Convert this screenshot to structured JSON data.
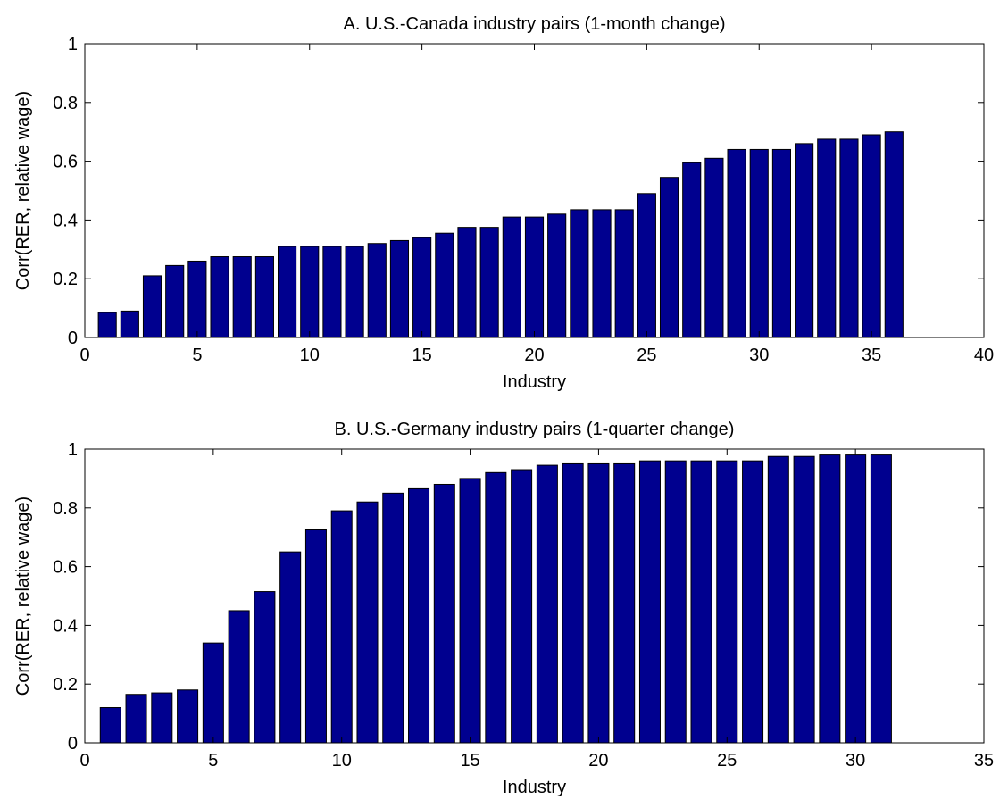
{
  "chart_data": [
    {
      "type": "bar",
      "title": "A. U.S.-Canada industry pairs (1-month change)",
      "xlabel": "Industry",
      "ylabel": "Corr(RER, relative wage)",
      "xlim": [
        0,
        40
      ],
      "ylim": [
        0,
        1
      ],
      "xticks": [
        0,
        5,
        10,
        15,
        20,
        25,
        30,
        35,
        40
      ],
      "yticks": [
        0,
        0.2,
        0.4,
        0.6,
        0.8,
        1
      ],
      "xtick_labels": [
        "0",
        "5",
        "10",
        "15",
        "20",
        "25",
        "30",
        "35",
        "40"
      ],
      "ytick_labels": [
        "0",
        "0.2",
        "0.4",
        "0.6",
        "0.8",
        "1"
      ],
      "categories": [
        1,
        2,
        3,
        4,
        5,
        6,
        7,
        8,
        9,
        10,
        11,
        12,
        13,
        14,
        15,
        16,
        17,
        18,
        19,
        20,
        21,
        22,
        23,
        24,
        25,
        26,
        27,
        28,
        29,
        30,
        31,
        32,
        33,
        34,
        35,
        36
      ],
      "values": [
        0.085,
        0.09,
        0.21,
        0.245,
        0.26,
        0.275,
        0.275,
        0.275,
        0.31,
        0.31,
        0.31,
        0.31,
        0.32,
        0.33,
        0.34,
        0.355,
        0.375,
        0.375,
        0.41,
        0.41,
        0.42,
        0.435,
        0.435,
        0.435,
        0.49,
        0.545,
        0.595,
        0.61,
        0.64,
        0.64,
        0.64,
        0.66,
        0.675,
        0.675,
        0.69,
        0.7
      ],
      "color": "#00008f",
      "grid": false
    },
    {
      "type": "bar",
      "title": "B. U.S.-Germany industry pairs (1-quarter change)",
      "xlabel": "Industry",
      "ylabel": "Corr(RER, relative wage)",
      "xlim": [
        0,
        35
      ],
      "ylim": [
        0,
        1
      ],
      "xticks": [
        0,
        5,
        10,
        15,
        20,
        25,
        30,
        35
      ],
      "yticks": [
        0,
        0.2,
        0.4,
        0.6,
        0.8,
        1
      ],
      "xtick_labels": [
        "0",
        "5",
        "10",
        "15",
        "20",
        "25",
        "30",
        "35"
      ],
      "ytick_labels": [
        "0",
        "0.2",
        "0.4",
        "0.6",
        "0.8",
        "1"
      ],
      "categories": [
        1,
        2,
        3,
        4,
        5,
        6,
        7,
        8,
        9,
        10,
        11,
        12,
        13,
        14,
        15,
        16,
        17,
        18,
        19,
        20,
        21,
        22,
        23,
        24,
        25,
        26,
        27,
        28,
        29,
        30,
        31
      ],
      "values": [
        0.12,
        0.165,
        0.17,
        0.18,
        0.34,
        0.45,
        0.515,
        0.65,
        0.725,
        0.79,
        0.82,
        0.85,
        0.865,
        0.88,
        0.9,
        0.92,
        0.93,
        0.945,
        0.95,
        0.95,
        0.95,
        0.96,
        0.96,
        0.96,
        0.96,
        0.96,
        0.975,
        0.975,
        0.98,
        0.98,
        0.98
      ],
      "color": "#00008f",
      "grid": false
    }
  ]
}
